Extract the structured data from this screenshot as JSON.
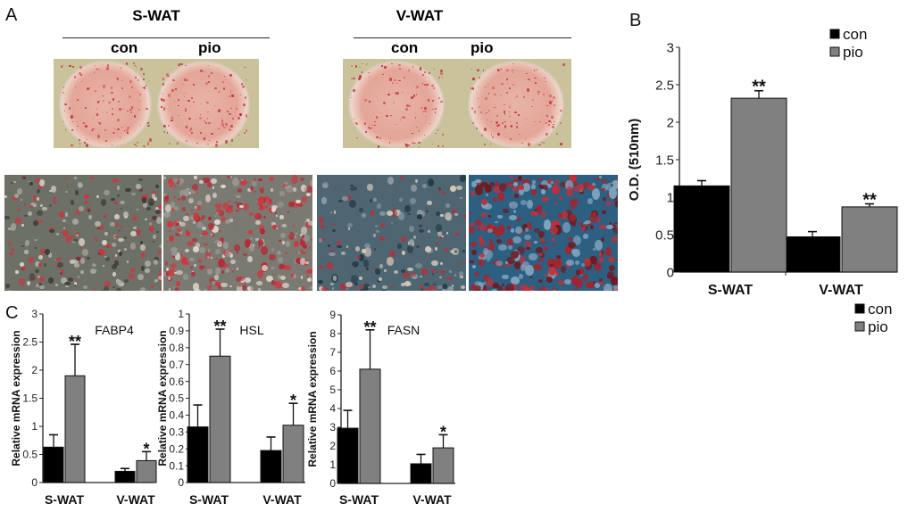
{
  "panel_a": {
    "letter": "A",
    "groups": [
      {
        "title": "S-WAT",
        "conditions": [
          "con",
          "pio"
        ]
      },
      {
        "title": "V-WAT",
        "conditions": [
          "con",
          "pio"
        ]
      }
    ]
  },
  "panel_b": {
    "letter": "B"
  },
  "panel_c": {
    "letter": "C"
  },
  "colors": {
    "con": "#000000",
    "pio": "#808080",
    "stain": "#c8303a"
  },
  "chart_data": [
    {
      "type": "bar",
      "id": "od",
      "title": "",
      "ylabel": "O.D. (510nm)",
      "xlabel": "",
      "categories": [
        "S-WAT",
        "V-WAT"
      ],
      "ylim": [
        0,
        3
      ],
      "yticks": [
        "0",
        "0.5",
        "1",
        "1.5",
        "2",
        "2.5",
        "3"
      ],
      "legend": {
        "entries": [
          "con",
          "pio"
        ],
        "placement": "top-right"
      },
      "series": [
        {
          "name": "con",
          "values": [
            1.15,
            0.47
          ],
          "errors": [
            0.07,
            0.07
          ],
          "sig": [
            "",
            ""
          ]
        },
        {
          "name": "pio",
          "values": [
            2.32,
            0.87
          ],
          "errors": [
            0.1,
            0.04
          ],
          "sig": [
            "**",
            "**"
          ]
        }
      ]
    },
    {
      "type": "bar",
      "id": "fabp4",
      "title": "FABP4",
      "ylabel": "Relative mRNA expression",
      "xlabel": "",
      "categories": [
        "S-WAT",
        "V-WAT"
      ],
      "ylim": [
        0,
        3
      ],
      "yticks": [
        "0",
        "0.5",
        "1",
        "1.5",
        "2",
        "2.5",
        "3"
      ],
      "series": [
        {
          "name": "con",
          "values": [
            0.63,
            0.2
          ],
          "errors": [
            0.22,
            0.05
          ],
          "sig": [
            "",
            ""
          ]
        },
        {
          "name": "pio",
          "values": [
            1.9,
            0.39
          ],
          "errors": [
            0.56,
            0.16
          ],
          "sig": [
            "**",
            "*"
          ]
        }
      ]
    },
    {
      "type": "bar",
      "id": "hsl",
      "title": "HSL",
      "ylabel": "Relative mRNA expression",
      "xlabel": "",
      "categories": [
        "S-WAT",
        "V-WAT"
      ],
      "ylim": [
        0,
        1
      ],
      "yticks": [
        "0",
        "0.1",
        "0.2",
        "0.3",
        "0.4",
        "0.5",
        "0.6",
        "0.7",
        "0.8",
        "0.9",
        "1"
      ],
      "series": [
        {
          "name": "con",
          "values": [
            0.33,
            0.19
          ],
          "errors": [
            0.13,
            0.08
          ],
          "sig": [
            "",
            ""
          ]
        },
        {
          "name": "pio",
          "values": [
            0.75,
            0.34
          ],
          "errors": [
            0.16,
            0.13
          ],
          "sig": [
            "**",
            "*"
          ]
        }
      ]
    },
    {
      "type": "bar",
      "id": "fasn",
      "title": "FASN",
      "ylabel": "Relative mRNA expression",
      "xlabel": "",
      "categories": [
        "S-WAT",
        "V-WAT"
      ],
      "ylim": [
        0,
        9
      ],
      "yticks": [
        "0",
        "1",
        "2",
        "3",
        "4",
        "5",
        "6",
        "7",
        "8",
        "9"
      ],
      "legend": {
        "entries": [
          "con",
          "pio"
        ],
        "placement": "top-right"
      },
      "series": [
        {
          "name": "con",
          "values": [
            2.95,
            1.05
          ],
          "errors": [
            0.95,
            0.5
          ],
          "sig": [
            "",
            ""
          ]
        },
        {
          "name": "pio",
          "values": [
            6.1,
            1.9
          ],
          "errors": [
            2.1,
            0.7
          ],
          "sig": [
            "**",
            "*"
          ]
        }
      ]
    }
  ]
}
